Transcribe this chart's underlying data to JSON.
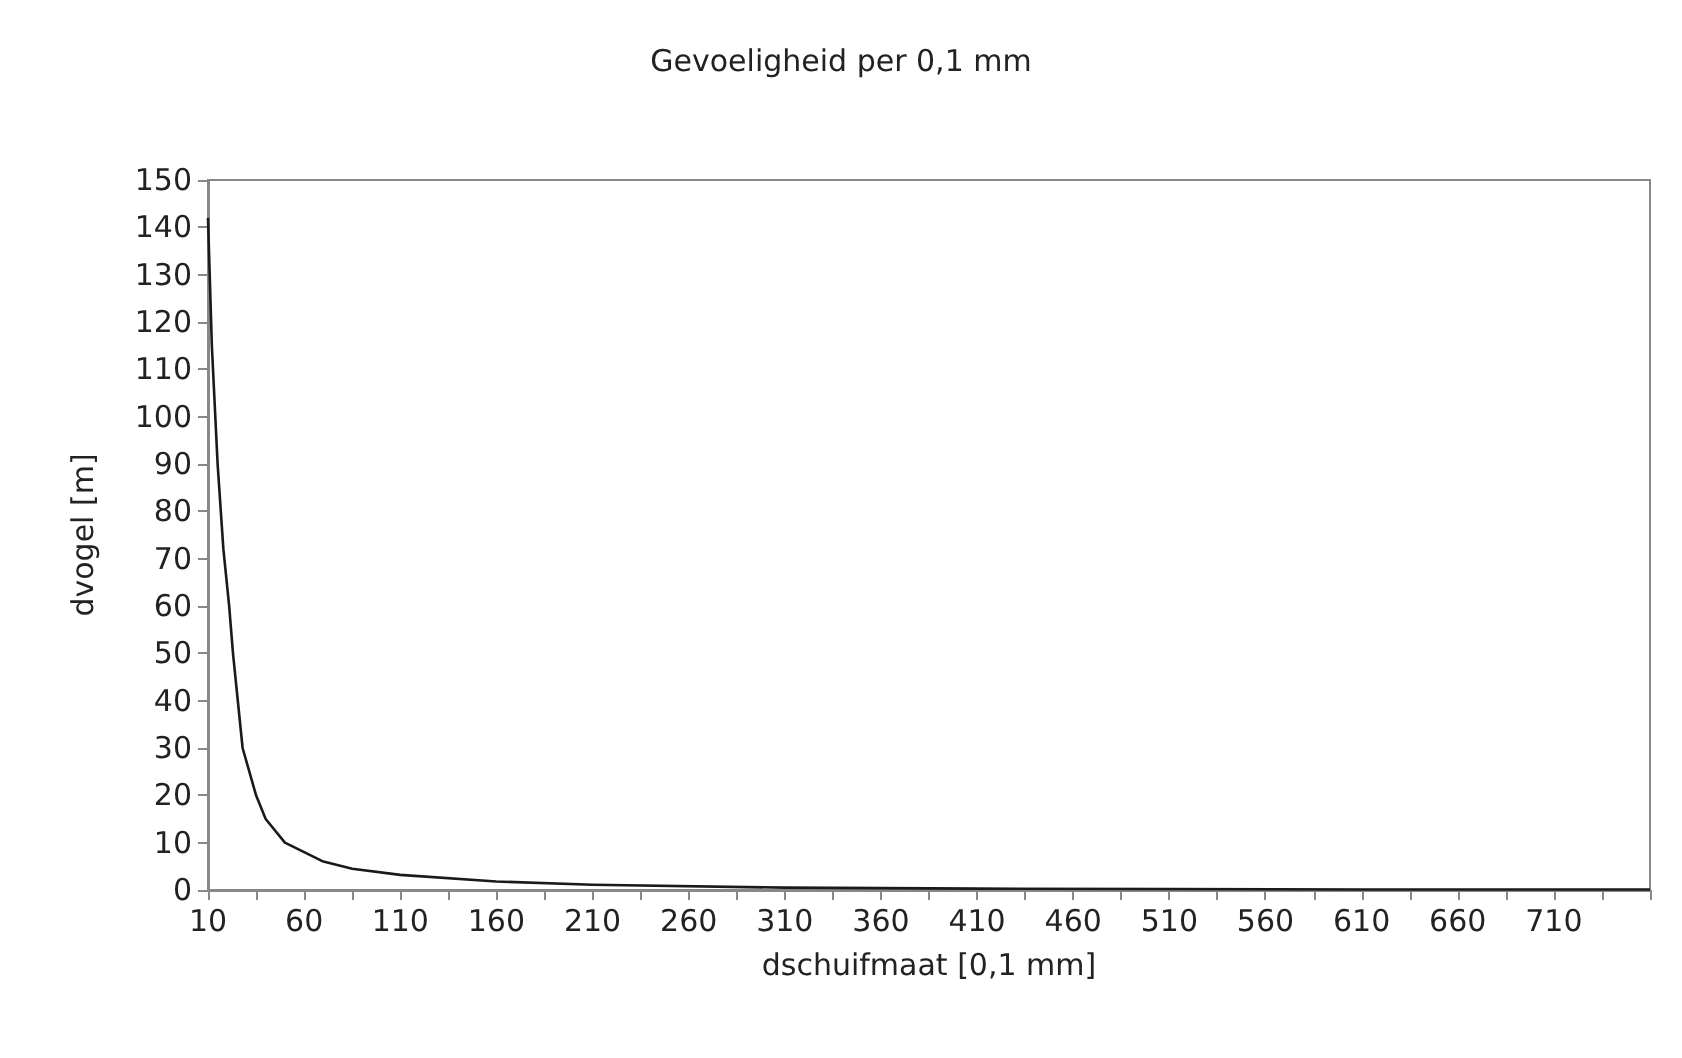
{
  "chart_data": {
    "type": "line",
    "title": "Gevoeligheid per 0,1 mm",
    "xlabel": "dschuifmaat [0,1 mm]",
    "ylabel": "dvogel [m]",
    "x": [
      10,
      12,
      15,
      18,
      21,
      23,
      28,
      35,
      40,
      50,
      60,
      70,
      85,
      110,
      160,
      210,
      310,
      410,
      510,
      610,
      760
    ],
    "series": [
      {
        "color": "#1a1a1a",
        "values": [
          142,
          115,
          90,
          72,
          60,
          50,
          30,
          20,
          15,
          10,
          8,
          6,
          4.5,
          3.2,
          1.8,
          1.1,
          0.5,
          0.3,
          0.2,
          0.1,
          0.1
        ]
      }
    ],
    "xlim": [
      10,
      760
    ],
    "xticks": [
      10,
      {
        "value": 35,
        "label": null
      },
      60,
      {
        "value": 85,
        "label": null
      },
      110,
      {
        "value": 135,
        "label": null
      },
      160,
      {
        "value": 185,
        "label": null
      },
      210,
      {
        "value": 235,
        "label": null
      },
      260,
      {
        "value": 285,
        "label": null
      },
      310,
      {
        "value": 335,
        "label": null
      },
      360,
      {
        "value": 385,
        "label": null
      },
      410,
      {
        "value": 435,
        "label": null
      },
      460,
      {
        "value": 485,
        "label": null
      },
      510,
      {
        "value": 535,
        "label": null
      },
      560,
      {
        "value": 585,
        "label": null
      },
      610,
      {
        "value": 635,
        "label": null
      },
      660,
      {
        "value": 685,
        "label": null
      },
      710,
      {
        "value": 735,
        "label": null
      },
      {
        "value": 760,
        "label": null
      }
    ],
    "ylim": [
      0,
      150
    ],
    "yticks": [
      0,
      10,
      20,
      30,
      40,
      50,
      60,
      70,
      80,
      90,
      100,
      110,
      120,
      130,
      140,
      150
    ],
    "grid": false,
    "marker": "none",
    "line_style": "solid"
  }
}
